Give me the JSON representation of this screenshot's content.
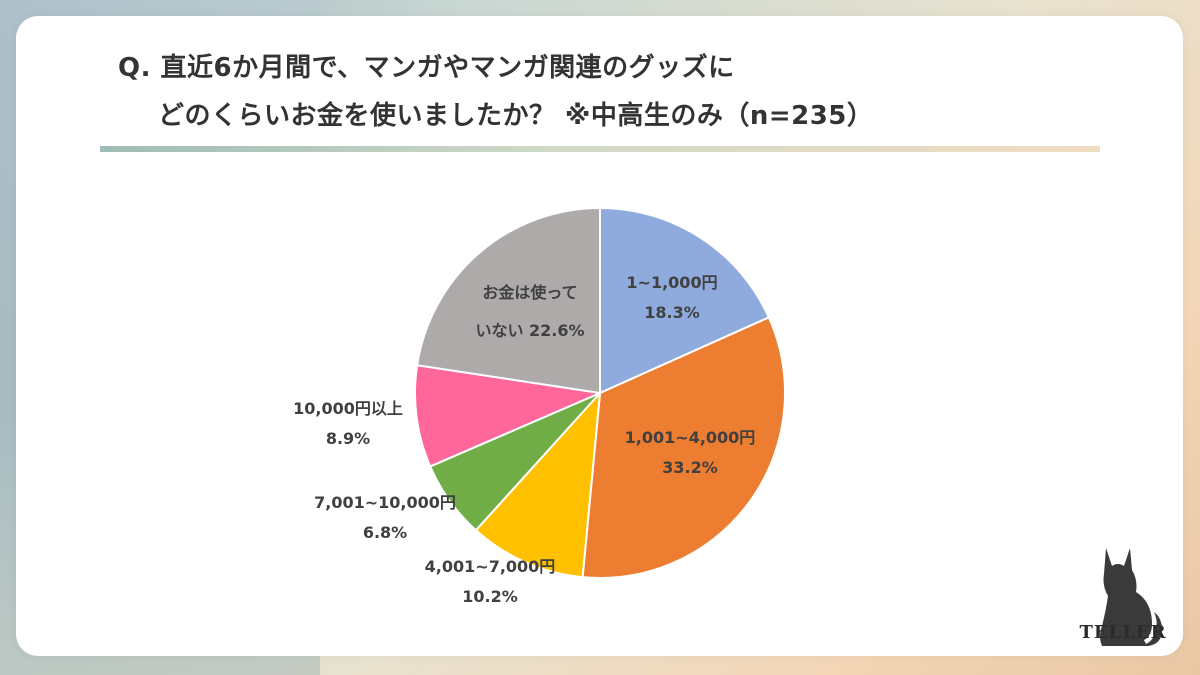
{
  "title": {
    "line1": "Q. 直近6か月間で、マンガやマンガ関連のグッズに",
    "line2": "どのくらいお金を使いましたか？ ※中高生のみ（n=235）"
  },
  "chart_data": {
    "type": "pie",
    "title": "Q. 直近6か月間で、マンガやマンガ関連のグッズに どのくらいお金を使いましたか？ ※中高生のみ（n=235）",
    "n": 235,
    "slices": [
      {
        "label_lines": [
          "1~1,000円"
        ],
        "value": 18.3,
        "value_label": "18.3%",
        "color": "#8faadc"
      },
      {
        "label_lines": [
          "1,001~4,000円"
        ],
        "value": 33.2,
        "value_label": "33.2%",
        "color": "#ed7d31"
      },
      {
        "label_lines": [
          "4,001~7,000円"
        ],
        "value": 10.2,
        "value_label": "10.2%",
        "color": "#ffc000"
      },
      {
        "label_lines": [
          "7,001~10,000円"
        ],
        "value": 6.8,
        "value_label": "6.8%",
        "color": "#70ad47"
      },
      {
        "label_lines": [
          "10,000円以上"
        ],
        "value": 8.9,
        "value_label": "8.9%",
        "color": "#ff6699"
      },
      {
        "label_lines": [
          "お金は使って",
          "いない"
        ],
        "value": 22.6,
        "value_label": "22.6%",
        "color": "#aeaaaa"
      }
    ]
  },
  "logo": {
    "text": "TELLER",
    "icon": "cat-silhouette-icon"
  }
}
